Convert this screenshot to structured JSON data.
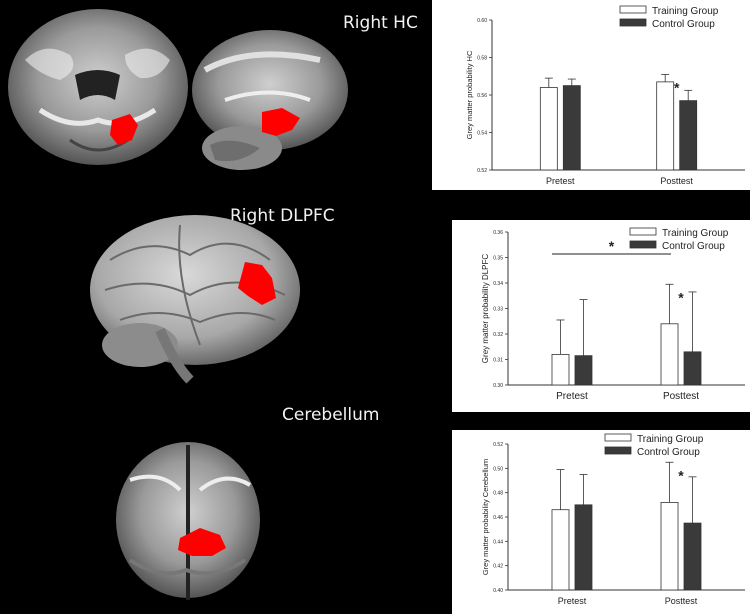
{
  "regions": [
    {
      "title": "Right HC"
    },
    {
      "title": "Right DLPFC"
    },
    {
      "title": "Cerebellum"
    }
  ],
  "colors": {
    "training": "#ffffff",
    "control": "#3a3a3a",
    "highlight": "#ff0000",
    "background": "#000000"
  },
  "chart_data": [
    {
      "type": "bar",
      "categories": [
        "Pretest",
        "Posttest"
      ],
      "series": [
        {
          "name": "Training Group",
          "values": [
            0.564,
            0.567
          ],
          "errors": [
            0.005,
            0.004
          ]
        },
        {
          "name": "Control Group",
          "values": [
            0.565,
            0.557
          ],
          "errors": [
            0.0035,
            0.0055
          ]
        }
      ],
      "ylabel": "Grey matter probability HC",
      "ylim": [
        0.52,
        0.6
      ],
      "yticks": [
        "0.52",
        "0.54",
        "0.56",
        "0.58",
        "0.60"
      ],
      "legend": "top-right",
      "annotations": [
        {
          "text": "*",
          "category": "Posttest"
        }
      ]
    },
    {
      "type": "bar",
      "categories": [
        "Pretest",
        "Posttest"
      ],
      "series": [
        {
          "name": "Training Group",
          "values": [
            0.312,
            0.324
          ],
          "errors": [
            0.0135,
            0.0155
          ]
        },
        {
          "name": "Control Group",
          "values": [
            0.3115,
            0.313
          ],
          "errors": [
            0.022,
            0.0235
          ]
        }
      ],
      "ylabel": "Grey matter probability DLPFC",
      "ylim": [
        0.3,
        0.36
      ],
      "yticks": [
        "0.30",
        "0.31",
        "0.32",
        "0.33",
        "0.34",
        "0.35",
        "0.36"
      ],
      "legend": "top-right",
      "annotations": [
        {
          "text": "*",
          "category": "Posttest"
        },
        {
          "text": "*",
          "from": "Pretest",
          "to": "Posttest"
        }
      ]
    },
    {
      "type": "bar",
      "categories": [
        "Pretest",
        "Posttest"
      ],
      "series": [
        {
          "name": "Training Group",
          "values": [
            0.466,
            0.472
          ],
          "errors": [
            0.033,
            0.033
          ]
        },
        {
          "name": "Control Group",
          "values": [
            0.47,
            0.455
          ],
          "errors": [
            0.025,
            0.038
          ]
        }
      ],
      "ylabel": "Grey matter probability Cerebellum",
      "ylim": [
        0.4,
        0.52
      ],
      "yticks": [
        "0.40",
        "0.42",
        "0.44",
        "0.46",
        "0.48",
        "0.50",
        "0.52"
      ],
      "legend": "top-right",
      "annotations": [
        {
          "text": "*",
          "category": "Posttest"
        }
      ]
    }
  ]
}
